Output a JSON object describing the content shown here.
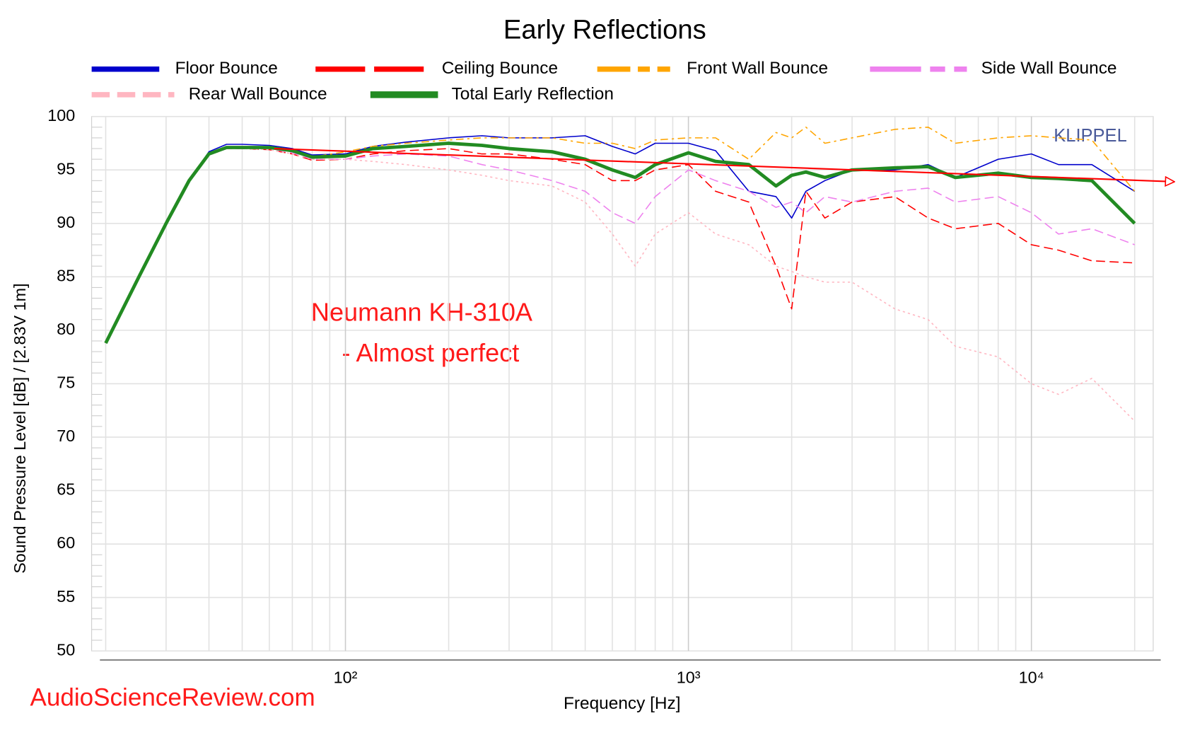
{
  "chart_data": {
    "type": "line",
    "title": "Early Reflections",
    "x_label": "Frequency [Hz]",
    "y_label": "Sound Pressure Level [dB]  / [2.83V 1m]",
    "watermark": "KLIPPEL",
    "source": "AudioScienceReview.com",
    "annotation": [
      "Neumann KH-310A",
      "- Almost perfect"
    ],
    "annotation_color": "#ff1a1a",
    "x_log": true,
    "grid": true,
    "xlim": [
      18.2,
      22650
    ],
    "ylim": [
      50,
      100
    ],
    "xticks": [
      {
        "value": 100,
        "label": "10²"
      },
      {
        "value": 1000,
        "label": "10³"
      },
      {
        "value": 10000,
        "label": "10⁴"
      }
    ],
    "yticks": [
      50,
      55,
      60,
      65,
      70,
      75,
      80,
      85,
      90,
      95,
      100
    ],
    "x": [
      20,
      25,
      30,
      35,
      40,
      45,
      50,
      60,
      70,
      80,
      100,
      120,
      150,
      200,
      250,
      300,
      400,
      500,
      600,
      700,
      800,
      1000,
      1200,
      1500,
      1800,
      2000,
      2200,
      2500,
      3000,
      4000,
      5000,
      6000,
      8000,
      10000,
      12000,
      15000,
      20000
    ],
    "series": [
      {
        "name": "Floor Bounce",
        "color": "#0000cc",
        "line_style": "solid",
        "values": [
          78.8,
          85,
          90,
          94,
          96.7,
          97.4,
          97.4,
          97.3,
          97,
          96.4,
          96.5,
          97.2,
          97.6,
          98,
          98.2,
          98,
          98,
          98.2,
          97.2,
          96.5,
          97.5,
          97.5,
          96.8,
          93,
          92.5,
          90.5,
          93,
          94,
          95,
          95,
          95.5,
          94.3,
          96,
          96.5,
          95.5,
          95.5,
          93
        ]
      },
      {
        "name": "Ceiling Bounce",
        "color": "#ff0000",
        "line_style": "dashed",
        "values": [
          78.8,
          85,
          90,
          94,
          96.4,
          97,
          97,
          96.9,
          96.5,
          95.9,
          96,
          96.5,
          96.8,
          97,
          96.5,
          96.5,
          96,
          95.5,
          94,
          94,
          95,
          95.5,
          93,
          92,
          86,
          82,
          93,
          90.5,
          92,
          92.5,
          90.5,
          89.5,
          90,
          88,
          87.5,
          86.5,
          86.3
        ]
      },
      {
        "name": "Front Wall Bounce",
        "color": "#ffa500",
        "line_style": "dashdot",
        "values": [
          78.8,
          85,
          90,
          94,
          96.5,
          97.1,
          97.1,
          97.1,
          96.8,
          96.2,
          96.7,
          97.2,
          97.5,
          97.8,
          98,
          98,
          98,
          97.5,
          97.5,
          97,
          97.8,
          98,
          98,
          96,
          98.5,
          98,
          99,
          97.5,
          98,
          98.8,
          99,
          97.5,
          98,
          98.2,
          98,
          97.8,
          93
        ]
      },
      {
        "name": "Side Wall Bounce",
        "color": "#ee82ee",
        "line_style": "dashed",
        "values": [
          78.8,
          85,
          90,
          94,
          96.4,
          97,
          97,
          97,
          96.6,
          96,
          96,
          96.3,
          96.5,
          96.3,
          95.5,
          95,
          94,
          93,
          91,
          90,
          92.5,
          95,
          94,
          93,
          91.5,
          92,
          91,
          92.5,
          92,
          93,
          93.3,
          92,
          92.5,
          91,
          89,
          89.5,
          88
        ]
      },
      {
        "name": "Rear Wall Bounce",
        "color": "#ffb6c1",
        "line_style": "dotted",
        "values": [
          78.8,
          85,
          90,
          94,
          96.4,
          97,
          97,
          96.9,
          96.5,
          96,
          96,
          95.8,
          95.5,
          95,
          94.5,
          94,
          93.5,
          92,
          89,
          86,
          89,
          91,
          89,
          88,
          86,
          85.5,
          85,
          84.5,
          84.5,
          82,
          81,
          78.5,
          77.5,
          75,
          74,
          75.5,
          71.5
        ]
      },
      {
        "name": "Total Early Reflection",
        "color": "#228b22",
        "line_style": "thick",
        "values": [
          78.8,
          85,
          90,
          94,
          96.5,
          97.1,
          97.1,
          97.1,
          96.8,
          96.2,
          96.3,
          97,
          97.2,
          97.5,
          97.3,
          97,
          96.7,
          96,
          95,
          94.3,
          95.5,
          96.6,
          95.8,
          95.5,
          93.5,
          94.5,
          94.8,
          94.3,
          95,
          95.2,
          95.3,
          94.3,
          94.7,
          94.3,
          94.2,
          94,
          90
        ]
      }
    ],
    "trend_line": {
      "x": [
        62,
        26000
      ],
      "values": [
        97,
        93.9
      ],
      "color": "#ff0000"
    }
  }
}
